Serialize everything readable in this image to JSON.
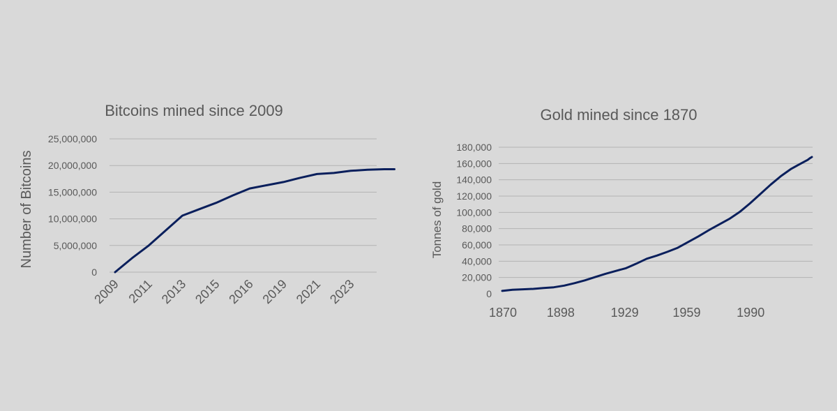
{
  "chart_data": [
    {
      "type": "line",
      "title": "Bitcoins mined since 2009",
      "xlabel": "",
      "ylabel": "Number of Bitcoins",
      "ylim": [
        0,
        25000000
      ],
      "yticks": [
        0,
        5000000,
        10000000,
        15000000,
        20000000,
        25000000
      ],
      "ytick_labels": [
        "0",
        "5,000,000",
        "10,000,000",
        "15,000,000",
        "20,000,000",
        "25,000,000"
      ],
      "categories": [
        "2009",
        "2011",
        "2013",
        "2015",
        "2016",
        "2019",
        "2021",
        "2023"
      ],
      "series": [
        {
          "name": "Bitcoins mined",
          "color": "#0a1f5c",
          "x": [
            0,
            0.5,
            1,
            1.5,
            2,
            2.5,
            3,
            3.5,
            4,
            4.5,
            5,
            5.5,
            6,
            6.5,
            7,
            7.5,
            8,
            8.3
          ],
          "values": [
            0,
            2600000,
            5000000,
            7800000,
            10600000,
            11800000,
            13000000,
            14400000,
            15700000,
            16300000,
            16900000,
            17700000,
            18400000,
            18600000,
            19000000,
            19200000,
            19300000,
            19300000
          ]
        }
      ]
    },
    {
      "type": "line",
      "title": "Gold mined since 1870",
      "xlabel": "",
      "ylabel": "Tonnes of gold",
      "ylim": [
        0,
        180000
      ],
      "xlim": [
        1870,
        2020
      ],
      "yticks": [
        0,
        20000,
        40000,
        60000,
        80000,
        100000,
        120000,
        140000,
        160000,
        180000
      ],
      "ytick_labels": [
        "0",
        "20,000",
        "40,000",
        "60,000",
        "80,000",
        "100,000",
        "120,000",
        "140,000",
        "160,000",
        "180,000"
      ],
      "xticks": [
        1870,
        1898,
        1929,
        1959,
        1990
      ],
      "xtick_labels": [
        "1870",
        "1898",
        "1929",
        "1959",
        "1990"
      ],
      "series": [
        {
          "name": "Gold mined",
          "color": "#0a1f5c",
          "x": [
            1870,
            1875,
            1880,
            1885,
            1890,
            1895,
            1900,
            1905,
            1910,
            1915,
            1920,
            1925,
            1930,
            1935,
            1940,
            1945,
            1950,
            1955,
            1960,
            1965,
            1970,
            1975,
            1980,
            1985,
            1990,
            1995,
            2000,
            2005,
            2010,
            2015,
            2018,
            2019,
            2020
          ],
          "values": [
            3500,
            5000,
            5500,
            6000,
            7000,
            8000,
            10000,
            13000,
            16500,
            20500,
            24500,
            28000,
            31500,
            37000,
            43000,
            47000,
            51500,
            56500,
            63500,
            70500,
            78000,
            85000,
            92000,
            100500,
            111000,
            122500,
            134000,
            144500,
            153500,
            160500,
            164500,
            166500,
            168000
          ]
        }
      ]
    }
  ]
}
